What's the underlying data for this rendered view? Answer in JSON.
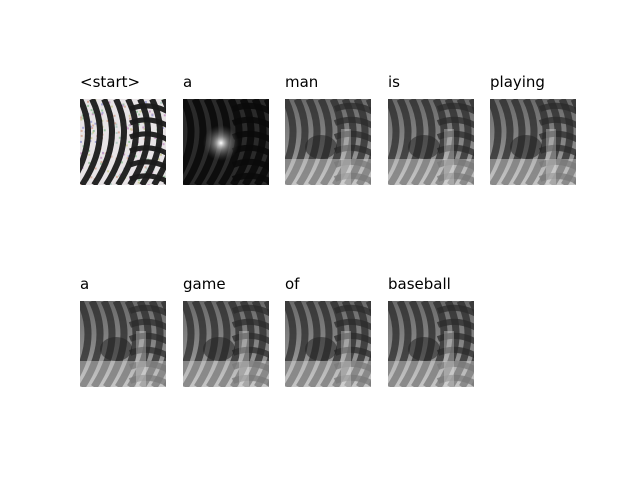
{
  "caption": {
    "tokens": [
      "<start>",
      "a",
      "man",
      "is",
      "playing",
      "a",
      "game",
      "of",
      "baseball"
    ]
  },
  "panels": [
    {
      "token_index": 0,
      "style": "color-noise"
    },
    {
      "token_index": 1,
      "style": "dark-spot"
    },
    {
      "token_index": 2,
      "style": "gray-blur"
    },
    {
      "token_index": 3,
      "style": "gray-blur"
    },
    {
      "token_index": 4,
      "style": "gray-blur"
    },
    {
      "token_index": 5,
      "style": "gray-blur"
    },
    {
      "token_index": 6,
      "style": "gray-blur"
    },
    {
      "token_index": 7,
      "style": "gray-blur"
    },
    {
      "token_index": 8,
      "style": "gray-blur"
    }
  ]
}
